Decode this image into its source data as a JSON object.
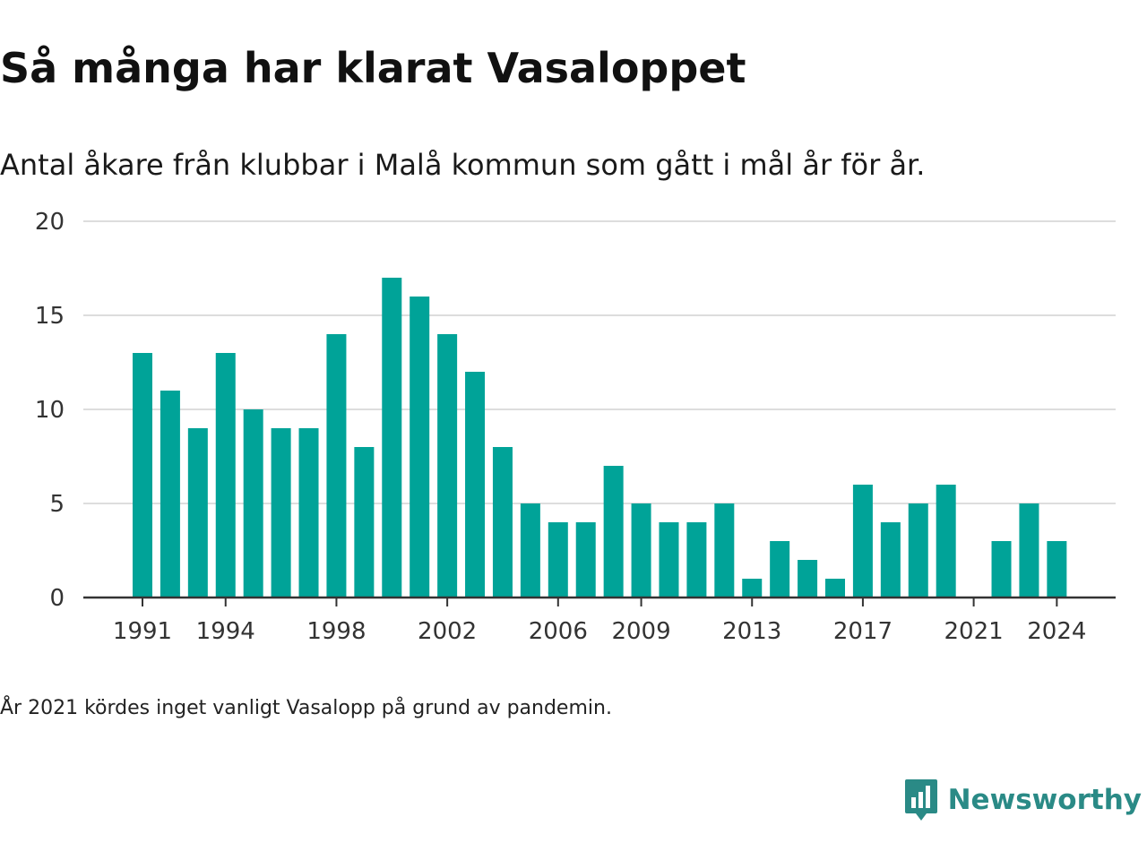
{
  "header": {
    "title": "Så många har klarat Vasaloppet",
    "subtitle": "Antal åkare från klubbar i Malå kommun som gått i mål år för år."
  },
  "footer": {
    "note": "År 2021 kördes inget vanligt Vasalopp på grund av pandemin.",
    "brand": "Newsworthy",
    "brand_icon": "newsworthy-logo-icon"
  },
  "colors": {
    "bar": "#00a398",
    "brand": "#2a8a86",
    "grid": "#dddddd",
    "axis": "#333333",
    "tick_text": "#333333"
  },
  "chart_data": {
    "type": "bar",
    "categories": [
      1991,
      1992,
      1993,
      1994,
      1995,
      1996,
      1997,
      1998,
      1999,
      2000,
      2001,
      2002,
      2003,
      2004,
      2005,
      2006,
      2007,
      2008,
      2009,
      2010,
      2011,
      2012,
      2013,
      2014,
      2015,
      2016,
      2017,
      2018,
      2019,
      2020,
      2021,
      2022,
      2023,
      2024
    ],
    "values": [
      13,
      11,
      9,
      13,
      10,
      9,
      9,
      14,
      8,
      17,
      16,
      14,
      12,
      8,
      5,
      4,
      4,
      7,
      5,
      4,
      4,
      5,
      1,
      3,
      2,
      1,
      6,
      4,
      5,
      6,
      0,
      3,
      5,
      3
    ],
    "x_tick_labels": [
      "1991",
      "1994",
      "1998",
      "2002",
      "2006",
      "2009",
      "2013",
      "2017",
      "2021",
      "2024"
    ],
    "y_ticks": [
      0,
      5,
      10,
      15,
      20
    ],
    "ylim": [
      0,
      20
    ],
    "grid": true,
    "legend": "none",
    "title": "Så många har klarat Vasaloppet",
    "xlabel": "",
    "ylabel": ""
  }
}
